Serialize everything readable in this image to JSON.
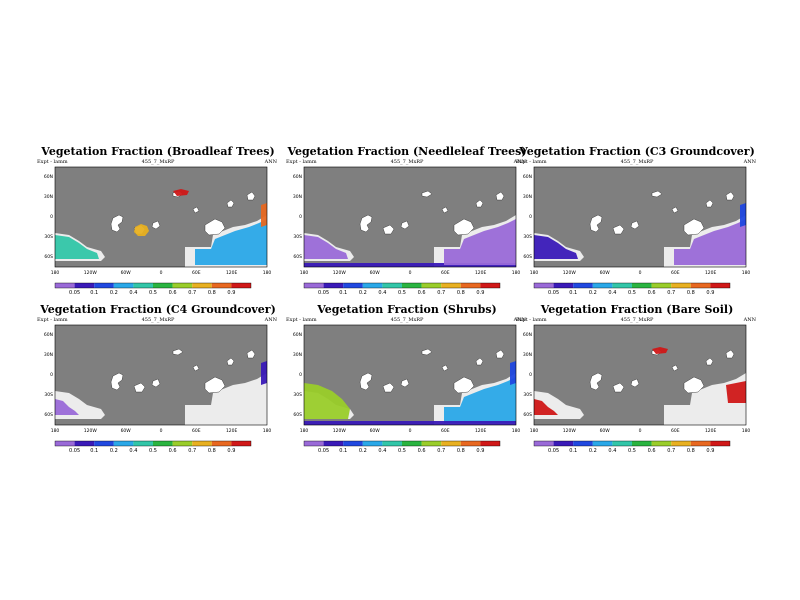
{
  "figure": {
    "common": {
      "expt_label": "Expt - lamm",
      "run_label": "455_7_MxRP",
      "season": "ANN",
      "lat_ticks": [
        "60N",
        "30N",
        "0",
        "30S",
        "60S"
      ],
      "lon_ticks": [
        "180",
        "120W",
        "60W",
        "0",
        "60E",
        "120E",
        "180"
      ],
      "colorbar_ticks": [
        "0.05",
        "0.1",
        "0.2",
        "0.4",
        "0.5",
        "0.6",
        "0.7",
        "0.8",
        "0.9"
      ],
      "colorbar_colors": [
        "#9a6ad8",
        "#3a1ab8",
        "#2048e0",
        "#2aa8e8",
        "#32c6a8",
        "#2ab440",
        "#9acd2a",
        "#e8b020",
        "#e86820",
        "#d01818"
      ],
      "ocean_color": "#7f7f7f",
      "land_color": "#ececec"
    },
    "panels": [
      {
        "title": "Vegetation Fraction (Broadleaf Trees)",
        "regions": [
          {
            "shape": "southeast",
            "color": "#2aa8e8"
          },
          {
            "shape": "southwest",
            "color": "#32c6a8"
          },
          {
            "shape": "ring-mid",
            "color": "#e8b020"
          },
          {
            "shape": "north-strip",
            "color": "#d01818"
          },
          {
            "shape": "east-edge",
            "color": "#e86820"
          }
        ]
      },
      {
        "title": "Vegetation Fraction (Needleleaf Trees)",
        "regions": [
          {
            "shape": "south-band",
            "color": "#3a1ab8"
          },
          {
            "shape": "southeast",
            "color": "#9a6ad8"
          },
          {
            "shape": "southwest",
            "color": "#9a6ad8"
          }
        ]
      },
      {
        "title": "Vegetation Fraction (C3 Groundcover)",
        "regions": [
          {
            "shape": "southwest",
            "color": "#3a1ab8"
          },
          {
            "shape": "southeast",
            "color": "#9a6ad8"
          },
          {
            "shape": "east-edge",
            "color": "#2048e0"
          }
        ]
      },
      {
        "title": "Vegetation Fraction (C4 Groundcover)",
        "regions": [
          {
            "shape": "southwest-thin",
            "color": "#9a6ad8"
          },
          {
            "shape": "east-edge",
            "color": "#3a1ab8"
          }
        ]
      },
      {
        "title": "Vegetation Fraction (Shrubs)",
        "regions": [
          {
            "shape": "southwest-big",
            "color": "#9acd2a"
          },
          {
            "shape": "southeast",
            "color": "#2aa8e8"
          },
          {
            "shape": "south-band",
            "color": "#3a1ab8"
          },
          {
            "shape": "east-edge",
            "color": "#2048e0"
          }
        ]
      },
      {
        "title": "Vegetation Fraction (Bare Soil)",
        "regions": [
          {
            "shape": "southwest-thin",
            "color": "#d01818"
          },
          {
            "shape": "east-block",
            "color": "#d01818"
          },
          {
            "shape": "north-strip",
            "color": "#d01818"
          }
        ]
      }
    ]
  }
}
